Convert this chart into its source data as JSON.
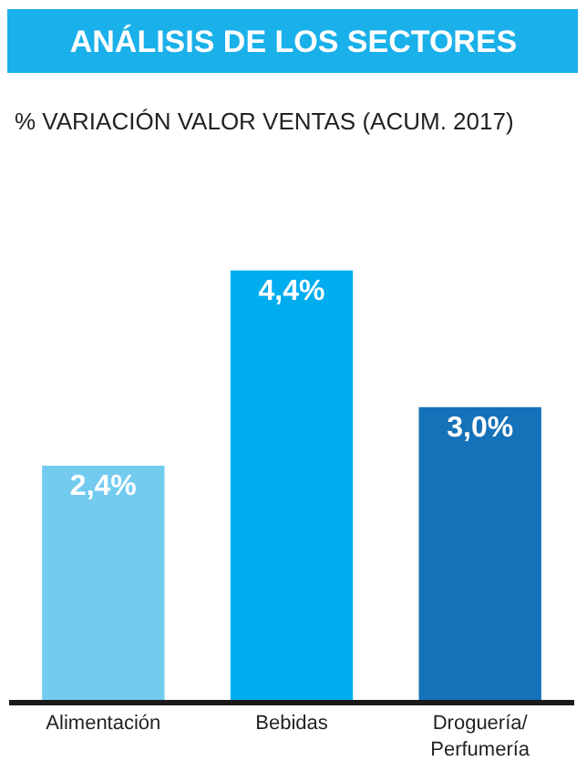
{
  "chart_data": {
    "type": "bar",
    "title": "ANÁLISIS DE LOS SECTORES",
    "subtitle": "% VARIACIÓN VALOR VENTAS (ACUM. 2017)",
    "categories": [
      "Alimentación",
      "Bebidas",
      "Droguería/\nPerfumería"
    ],
    "values": [
      2.4,
      4.4,
      3.0
    ],
    "colors": [
      "#73ccf0",
      "#00aeef",
      "#1571b8"
    ],
    "value_labels": [
      "2,4%",
      "4,4%",
      "3,0%"
    ],
    "tick_labels": "x",
    "legend": false
  }
}
